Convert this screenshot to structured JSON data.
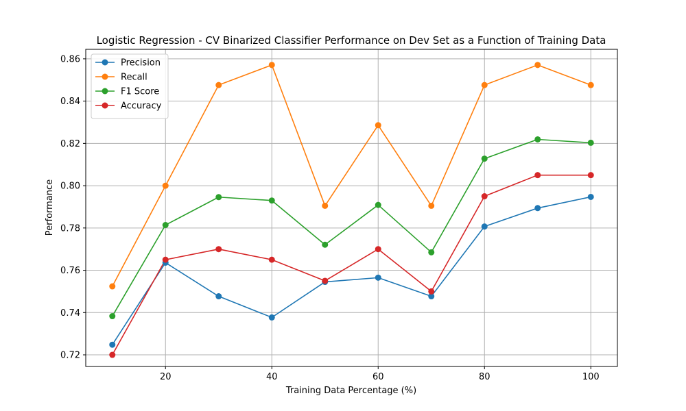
{
  "chart_data": {
    "type": "line",
    "title": "Logistic Regression - CV Binarized Classifier Performance on Dev Set as a Function of Training Data",
    "xlabel": "Training Data Percentage (%)",
    "ylabel": "Performance",
    "x": [
      10,
      20,
      30,
      40,
      50,
      60,
      70,
      80,
      90,
      100
    ],
    "xlim": [
      5,
      105
    ],
    "ylim": [
      0.7145,
      0.8645
    ],
    "xticks": [
      20,
      40,
      60,
      80,
      100
    ],
    "yticks": [
      0.72,
      0.74,
      0.76,
      0.78,
      0.8,
      0.82,
      0.84,
      0.86
    ],
    "ytick_labels": [
      "0.72",
      "0.74",
      "0.76",
      "0.78",
      "0.80",
      "0.82",
      "0.84",
      "0.86"
    ],
    "grid": true,
    "legend_position": "top-left",
    "series": [
      {
        "name": "Precision",
        "color": "#1f77b4",
        "values": [
          0.7248,
          0.7636,
          0.7477,
          0.7377,
          0.7545,
          0.7565,
          0.7477,
          0.7807,
          0.7894,
          0.7947
        ]
      },
      {
        "name": "Recall",
        "color": "#ff7f0e",
        "values": [
          0.7524,
          0.8,
          0.8476,
          0.8571,
          0.7905,
          0.8286,
          0.7905,
          0.8476,
          0.8571,
          0.8476
        ]
      },
      {
        "name": "F1 Score",
        "color": "#2ca02c",
        "values": [
          0.7383,
          0.7814,
          0.7946,
          0.793,
          0.7721,
          0.7909,
          0.7685,
          0.8128,
          0.8219,
          0.8203
        ]
      },
      {
        "name": "Accuracy",
        "color": "#d62728",
        "values": [
          0.72,
          0.765,
          0.77,
          0.765,
          0.755,
          0.77,
          0.75,
          0.795,
          0.805,
          0.805
        ]
      }
    ]
  }
}
